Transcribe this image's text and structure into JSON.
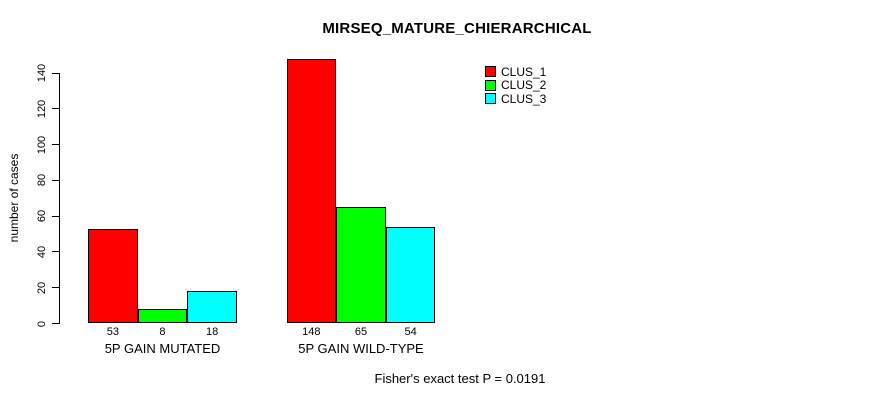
{
  "chart_data": {
    "type": "bar",
    "title": "MIRSEQ_MATURE_CHIERARCHICAL",
    "xlabel": "",
    "ylabel": "number of cases",
    "categories": [
      "5P GAIN MUTATED",
      "5P GAIN WILD-TYPE"
    ],
    "series": [
      {
        "name": "CLUS_1",
        "color": "#ff0000",
        "values": [
          53,
          148
        ]
      },
      {
        "name": "CLUS_2",
        "color": "#00ff00",
        "values": [
          8,
          65
        ]
      },
      {
        "name": "CLUS_3",
        "color": "#00ffff",
        "values": [
          18,
          54
        ]
      }
    ],
    "bar_value_labels": true,
    "yticks": [
      0,
      20,
      40,
      60,
      80,
      100,
      120,
      140
    ],
    "ylim": [
      0,
      140
    ],
    "grid": false,
    "legend_position": "top-right",
    "annotation": "Fisher's exact test P = 0.0191",
    "background_color": "#ffffff",
    "axis_color": "#000000"
  }
}
